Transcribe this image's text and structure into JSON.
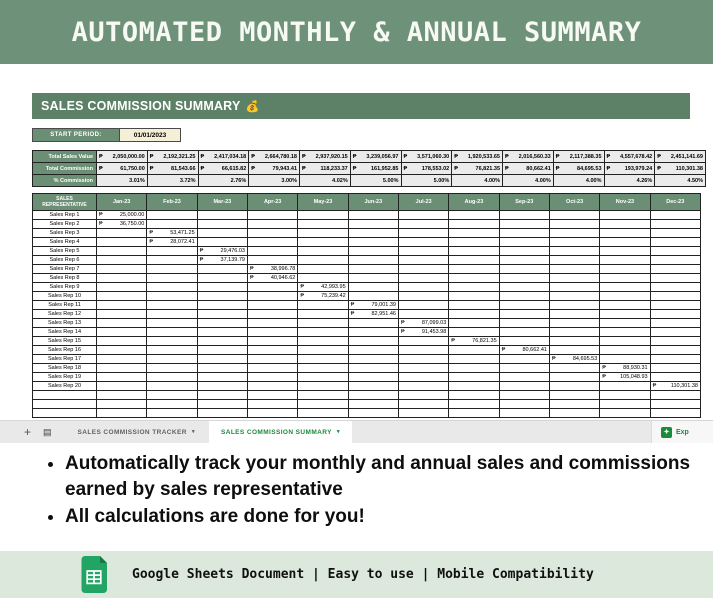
{
  "banner": {
    "title": "AUTOMATED MONTHLY & ANNUAL SUMMARY"
  },
  "sheet": {
    "title": "SALES COMMISSION SUMMARY",
    "title_emoji": "💰",
    "start_period_label": "START PERIOD:",
    "start_period_value": "01/01/2023",
    "currency": "₱",
    "months": [
      "Jan-23",
      "Feb-23",
      "Mar-23",
      "Apr-23",
      "May-23",
      "Jun-23",
      "Jul-23",
      "Aug-23",
      "Sep-23",
      "Oct-23",
      "Nov-23",
      "Dec-23"
    ],
    "totals": {
      "rows": [
        {
          "label": "Total Sales Value",
          "currency": true,
          "values": [
            "2,050,000.00",
            "2,192,321.25",
            "2,417,034.18",
            "2,664,780.18",
            "2,937,920.15",
            "3,239,056.97",
            "3,571,060.30",
            "1,920,533.65",
            "2,016,560.33",
            "2,117,388.35",
            "4,557,678.42",
            "2,451,141.69"
          ]
        },
        {
          "label": "Total Commission",
          "currency": true,
          "values": [
            "61,750.00",
            "81,543.66",
            "66,615.82",
            "79,943.41",
            "118,233.37",
            "161,952.85",
            "178,553.02",
            "76,821.35",
            "80,662.41",
            "84,695.53",
            "193,979.24",
            "110,301.38"
          ]
        },
        {
          "label": "% Commission",
          "currency": false,
          "values": [
            "3.01%",
            "3.72%",
            "2.76%",
            "3.00%",
            "4.02%",
            "5.00%",
            "5.00%",
            "4.00%",
            "4.00%",
            "4.00%",
            "4.26%",
            "4.50%"
          ]
        }
      ]
    },
    "main_table": {
      "header_label": "SALES REPRESENTATIVE",
      "empty_rows": 3,
      "rows": [
        {
          "name": "Sales Rep 1",
          "month": 0,
          "value": "25,000.00"
        },
        {
          "name": "Sales Rep 2",
          "month": 0,
          "value": "36,750.00"
        },
        {
          "name": "Sales Rep 3",
          "month": 1,
          "value": "53,471.25"
        },
        {
          "name": "Sales Rep 4",
          "month": 1,
          "value": "28,072.41"
        },
        {
          "name": "Sales Rep 5",
          "month": 2,
          "value": "29,476.03"
        },
        {
          "name": "Sales Rep 6",
          "month": 2,
          "value": "37,139.79"
        },
        {
          "name": "Sales Rep 7",
          "month": 3,
          "value": "38,996.78"
        },
        {
          "name": "Sales Rep 8",
          "month": 3,
          "value": "40,946.62"
        },
        {
          "name": "Sales Rep 9",
          "month": 4,
          "value": "42,993.95"
        },
        {
          "name": "Sales Rep 10",
          "month": 4,
          "value": "75,239.42"
        },
        {
          "name": "Sales Rep 11",
          "month": 5,
          "value": "79,001.39"
        },
        {
          "name": "Sales Rep 12",
          "month": 5,
          "value": "82,951.46"
        },
        {
          "name": "Sales Rep 13",
          "month": 6,
          "value": "87,099.03"
        },
        {
          "name": "Sales Rep 14",
          "month": 6,
          "value": "91,453.98"
        },
        {
          "name": "Sales Rep 15",
          "month": 7,
          "value": "76,821.35"
        },
        {
          "name": "Sales Rep 16",
          "month": 8,
          "value": "80,662.41"
        },
        {
          "name": "Sales Rep 17",
          "month": 9,
          "value": "84,695.53"
        },
        {
          "name": "Sales Rep 18",
          "month": 10,
          "value": "88,930.31"
        },
        {
          "name": "Sales Rep 19",
          "month": 10,
          "value": "105,048.93"
        },
        {
          "name": "Sales Rep 20",
          "month": 11,
          "value": "110,301.38"
        }
      ]
    },
    "tabbar": {
      "tabs": [
        {
          "label": "SALES COMMISSION TRACKER"
        },
        {
          "label": "SALES COMMISSION SUMMARY"
        }
      ],
      "explore_label": "Exp"
    }
  },
  "icons": {
    "add": "+",
    "all_sheets": "▤",
    "caret": "▾",
    "explore": "✦"
  },
  "bullets": [
    "Automatically track your monthly and annual sales and commissions earned by sales representative",
    "All calculations are done for you!"
  ],
  "footer": {
    "text": "Google Sheets Document | Easy to use | Mobile Compatibility"
  },
  "colors": {
    "banner_green": "#6e9279",
    "sheet_title_green": "#5d8167",
    "table_header_green": "#6b8f74",
    "footer_light_green": "#dde8dc",
    "tab_active_green": "#1a8a3c",
    "date_cell_cream": "#f6efd7",
    "totals_cell_gray": "#ebebeb"
  }
}
